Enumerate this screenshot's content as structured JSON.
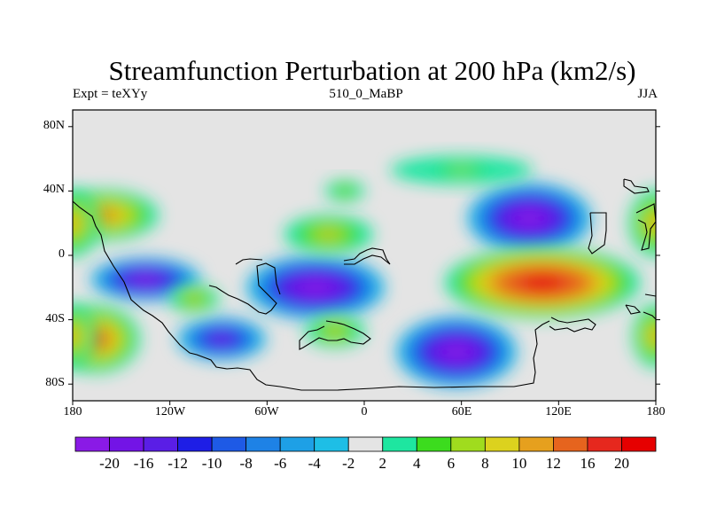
{
  "figure": {
    "title": "Streamfunction Perturbation at 200 hPa (km2/s)",
    "left_label": "Expt = teXYy",
    "center_label": "510_0_MaBP",
    "right_label": "JJA"
  },
  "map": {
    "projection": "cylindrical-equidistant",
    "lon_range": [
      -180,
      180
    ],
    "lat_range": [
      -90,
      90
    ],
    "lat_ticks": [
      "80N",
      "40N",
      "0",
      "40S",
      "80S"
    ],
    "lon_ticks": [
      "180",
      "120W",
      "60W",
      "0",
      "60E",
      "120E",
      "180"
    ],
    "missing_color": "#e4e4e4"
  },
  "colorbar": {
    "labels": [
      "-20",
      "-16",
      "-12",
      "-10",
      "-8",
      "-6",
      "-4",
      "-2",
      "2",
      "4",
      "6",
      "8",
      "10",
      "12",
      "16",
      "20"
    ],
    "colors": [
      "#8a1ae6",
      "#7314e6",
      "#5a1ee6",
      "#1e1ee6",
      "#1e5ae6",
      "#1e82e6",
      "#1ea0e6",
      "#1ebee6",
      "#e4e4e4",
      "#1ee6a0",
      "#3cdc1e",
      "#a0dc1e",
      "#dcd21e",
      "#e6a01e",
      "#e6641e",
      "#e6281e",
      "#e60000"
    ]
  },
  "chart_data": {
    "type": "heatmap",
    "title": "Streamfunction Perturbation at 200 hPa (km2/s)",
    "units": "km2/s",
    "level": "200 hPa",
    "season": "JJA",
    "experiment": "teXYy",
    "x": "longitude",
    "y": "latitude",
    "xlim": [
      -180,
      180
    ],
    "ylim": [
      -90,
      90
    ],
    "contour_levels": [
      -20,
      -16,
      -12,
      -10,
      -8,
      -6,
      -4,
      -2,
      2,
      4,
      6,
      8,
      10,
      12,
      16,
      20
    ],
    "features": [
      {
        "lon": 102,
        "lat": 23,
        "value": -22
      },
      {
        "lon": 57,
        "lat": -60,
        "value": -22
      },
      {
        "lon": -30,
        "lat": -20,
        "value": -22
      },
      {
        "lon": -135,
        "lat": -15,
        "value": -20
      },
      {
        "lon": -88,
        "lat": -52,
        "value": -16
      },
      {
        "lon": 110,
        "lat": -17,
        "value": 20
      },
      {
        "lon": -165,
        "lat": -52,
        "value": 14
      },
      {
        "lon": -160,
        "lat": 25,
        "value": 12
      },
      {
        "lon": 180,
        "lat": 20,
        "value": 10
      },
      {
        "lon": 180,
        "lat": -50,
        "value": 10
      },
      {
        "lon": -22,
        "lat": 13,
        "value": 8
      },
      {
        "lon": -18,
        "lat": -47,
        "value": 8
      },
      {
        "lon": -105,
        "lat": -27,
        "value": 8
      },
      {
        "lon": -12,
        "lat": 40,
        "value": 6
      },
      {
        "lon": 60,
        "lat": 53,
        "value": 4
      }
    ]
  }
}
